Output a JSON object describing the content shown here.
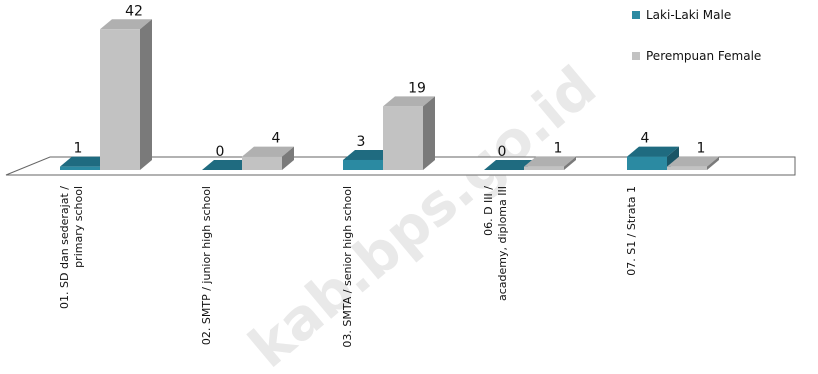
{
  "watermark_text": "kab.bps.go.id",
  "colors": {
    "male_front": "#2b8aa2",
    "male_top": "#1f6b80",
    "male_side": "#1a5566",
    "female_front": "#c2c2c2",
    "female_top": "#b0b0b0",
    "female_side": "#7a7a7a",
    "floor_line": "#666666"
  },
  "chart_data": {
    "type": "bar",
    "title": "",
    "xlabel": "",
    "ylabel": "",
    "categories": [
      "01. SD dan sederajat / primary school",
      "02. SMTP / junior high school",
      "03. SMTA / senior high school",
      "06. D III / academy, diploma III",
      "07. S1 / Strata 1"
    ],
    "series": [
      {
        "name": "Laki-Laki  Male",
        "values": [
          1,
          0,
          3,
          0,
          4
        ]
      },
      {
        "name": "Perempuan Female",
        "values": [
          42,
          4,
          19,
          1,
          1
        ]
      }
    ],
    "legend_position": "top-right",
    "grid": false,
    "view": "3d"
  }
}
